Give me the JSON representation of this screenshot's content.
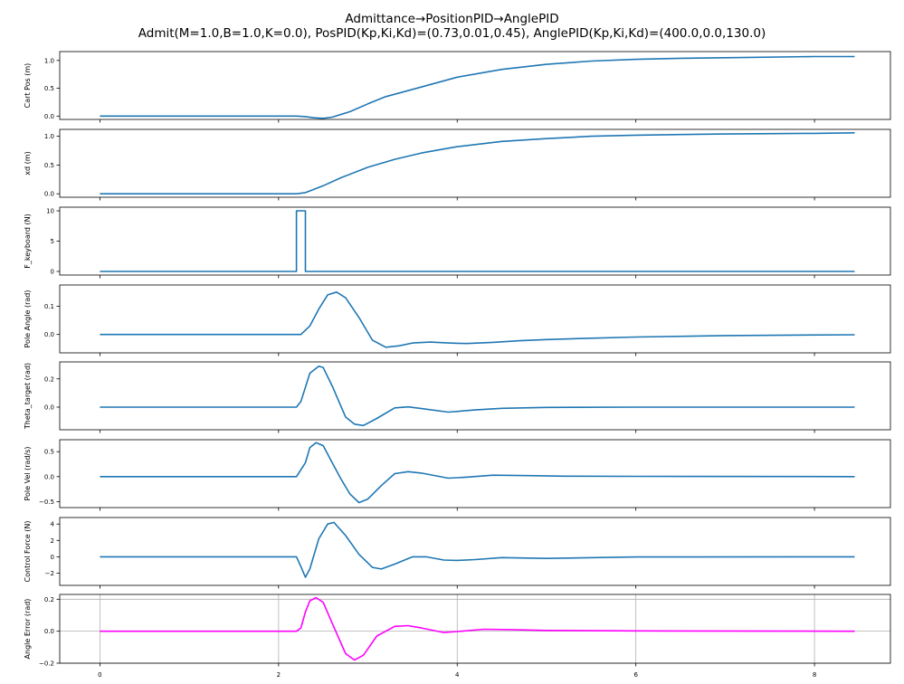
{
  "title": {
    "line1": "Admittance→PositionPID→AnglePID",
    "line2": "Admit(M=1.0,B=1.0,K=0.0), PosPID(Kp,Ki,Kd)=(0.73,0.01,0.45), AnglePID(Kp,Ki,Kd)=(400.0,0.0,130.0)"
  },
  "chart_data": [
    {
      "type": "line",
      "ylabel": "Cart Pos (m)",
      "color": "#1f77b4",
      "grid": false,
      "xlim": [
        -0.45,
        8.85
      ],
      "ylim": [
        -0.06,
        1.16
      ],
      "yticks": [
        0.0,
        0.5,
        1.0
      ],
      "ytick_labels": [
        "0.0",
        "0.5",
        "1.0"
      ],
      "x": [
        0,
        2.2,
        2.3,
        2.4,
        2.5,
        2.6,
        2.8,
        3.0,
        3.2,
        3.5,
        4.0,
        4.5,
        5.0,
        5.5,
        6.0,
        6.5,
        7.0,
        8.0,
        8.45
      ],
      "y": [
        0,
        0,
        -0.01,
        -0.03,
        -0.04,
        -0.02,
        0.08,
        0.22,
        0.35,
        0.48,
        0.7,
        0.84,
        0.93,
        0.99,
        1.02,
        1.04,
        1.05,
        1.07,
        1.07
      ]
    },
    {
      "type": "line",
      "ylabel": "xd (m)",
      "color": "#1f77b4",
      "grid": false,
      "xlim": [
        -0.45,
        8.85
      ],
      "ylim": [
        -0.06,
        1.12
      ],
      "yticks": [
        0.0,
        0.5,
        1.0
      ],
      "ytick_labels": [
        "0.0",
        "0.5",
        "1.0"
      ],
      "x": [
        0,
        2.2,
        2.3,
        2.4,
        2.5,
        2.7,
        3.0,
        3.3,
        3.6,
        4.0,
        4.5,
        5.0,
        5.5,
        6.0,
        6.5,
        7.0,
        8.0,
        8.45
      ],
      "y": [
        0,
        0,
        0.02,
        0.08,
        0.14,
        0.28,
        0.46,
        0.6,
        0.71,
        0.82,
        0.91,
        0.96,
        1.0,
        1.02,
        1.03,
        1.04,
        1.05,
        1.06
      ]
    },
    {
      "type": "line",
      "ylabel": "F_keyboard (N)",
      "color": "#1f77b4",
      "grid": false,
      "xlim": [
        -0.45,
        8.85
      ],
      "ylim": [
        -0.6,
        10.6
      ],
      "yticks": [
        0,
        5,
        10
      ],
      "ytick_labels": [
        "0",
        "5",
        "10"
      ],
      "x": [
        0,
        2.2,
        2.2,
        2.3,
        2.3,
        8.45
      ],
      "y": [
        0,
        0,
        10,
        10,
        0,
        0
      ]
    },
    {
      "type": "line",
      "ylabel": "Pole Angle (rad)",
      "color": "#1f77b4",
      "grid": false,
      "xlim": [
        -0.45,
        8.85
      ],
      "ylim": [
        -0.065,
        0.175
      ],
      "yticks": [
        0.0,
        0.1
      ],
      "ytick_labels": [
        "0.0",
        "0.1"
      ],
      "x": [
        0,
        2.25,
        2.35,
        2.45,
        2.55,
        2.65,
        2.75,
        2.9,
        3.05,
        3.2,
        3.35,
        3.5,
        3.7,
        3.9,
        4.1,
        4.4,
        4.7,
        5.0,
        5.5,
        6.0,
        7.0,
        8.45
      ],
      "y": [
        0,
        0,
        0.03,
        0.09,
        0.14,
        0.15,
        0.13,
        0.06,
        -0.02,
        -0.045,
        -0.04,
        -0.03,
        -0.027,
        -0.03,
        -0.032,
        -0.028,
        -0.022,
        -0.018,
        -0.013,
        -0.009,
        -0.004,
        -0.001
      ]
    },
    {
      "type": "line",
      "ylabel": "Theta_target (rad)",
      "color": "#1f77b4",
      "grid": false,
      "xlim": [
        -0.45,
        8.85
      ],
      "ylim": [
        -0.16,
        0.32
      ],
      "yticks": [
        0.0,
        0.2
      ],
      "ytick_labels": [
        "0.0",
        "0.2"
      ],
      "x": [
        0,
        2.2,
        2.25,
        2.3,
        2.35,
        2.45,
        2.5,
        2.6,
        2.75,
        2.85,
        2.95,
        3.1,
        3.3,
        3.45,
        3.6,
        3.9,
        4.2,
        4.5,
        5.0,
        6.0,
        8.45
      ],
      "y": [
        0,
        0,
        0.04,
        0.14,
        0.24,
        0.29,
        0.28,
        0.15,
        -0.07,
        -0.12,
        -0.13,
        -0.08,
        -0.005,
        0.002,
        -0.01,
        -0.035,
        -0.02,
        -0.008,
        -0.002,
        0,
        0
      ]
    },
    {
      "type": "line",
      "ylabel": "Pole Vel (rad/s)",
      "color": "#1f77b4",
      "grid": false,
      "xlim": [
        -0.45,
        8.85
      ],
      "ylim": [
        -0.62,
        0.74
      ],
      "yticks": [
        -0.5,
        0.0,
        0.5
      ],
      "ytick_labels": [
        "−0.5",
        "0.0",
        "0.5"
      ],
      "x": [
        0,
        2.2,
        2.3,
        2.35,
        2.42,
        2.5,
        2.6,
        2.7,
        2.8,
        2.9,
        3.0,
        3.15,
        3.3,
        3.45,
        3.6,
        3.9,
        4.1,
        4.4,
        4.8,
        5.2,
        6.0,
        8.45
      ],
      "y": [
        0,
        0,
        0.28,
        0.58,
        0.68,
        0.62,
        0.28,
        -0.05,
        -0.35,
        -0.52,
        -0.45,
        -0.18,
        0.06,
        0.1,
        0.07,
        -0.03,
        -0.01,
        0.03,
        0.02,
        0.01,
        0.005,
        0
      ]
    },
    {
      "type": "line",
      "ylabel": "Control Force (N)",
      "color": "#1f77b4",
      "grid": false,
      "xlim": [
        -0.45,
        8.85
      ],
      "ylim": [
        -3.5,
        4.8
      ],
      "yticks": [
        -2,
        0,
        2,
        4
      ],
      "ytick_labels": [
        "−2",
        "0",
        "2",
        "4"
      ],
      "x": [
        0,
        2.2,
        2.25,
        2.3,
        2.35,
        2.45,
        2.55,
        2.62,
        2.75,
        2.9,
        3.05,
        3.15,
        3.3,
        3.5,
        3.65,
        3.85,
        4.0,
        4.2,
        4.5,
        5.0,
        6.0,
        8.45
      ],
      "y": [
        0,
        0,
        -1.2,
        -2.5,
        -1.5,
        2.2,
        4.0,
        4.2,
        2.6,
        0.3,
        -1.3,
        -1.5,
        -0.9,
        0.0,
        0.0,
        -0.4,
        -0.45,
        -0.35,
        -0.1,
        -0.2,
        -0.02,
        0
      ]
    },
    {
      "type": "line",
      "ylabel": "Angle Error (rad)",
      "color": "#ff00ff",
      "grid": true,
      "xlim": [
        -0.45,
        8.85
      ],
      "ylim": [
        -0.2,
        0.23
      ],
      "yticks": [
        -0.2,
        0.0,
        0.2
      ],
      "ytick_labels": [
        "−0.2",
        "0.0",
        "0.2"
      ],
      "xticks": [
        0,
        2,
        4,
        6,
        8
      ],
      "xtick_labels": [
        "0",
        "2",
        "4",
        "6",
        "8"
      ],
      "x": [
        0,
        2.2,
        2.25,
        2.3,
        2.35,
        2.42,
        2.5,
        2.6,
        2.75,
        2.85,
        2.95,
        3.1,
        3.3,
        3.45,
        3.6,
        3.85,
        4.0,
        4.3,
        4.6,
        5.0,
        6.0,
        8.45
      ],
      "y": [
        0,
        0,
        0.02,
        0.12,
        0.19,
        0.21,
        0.18,
        0.05,
        -0.14,
        -0.18,
        -0.15,
        -0.03,
        0.03,
        0.035,
        0.02,
        -0.008,
        -0.002,
        0.012,
        0.01,
        0.005,
        0.002,
        0
      ]
    }
  ]
}
